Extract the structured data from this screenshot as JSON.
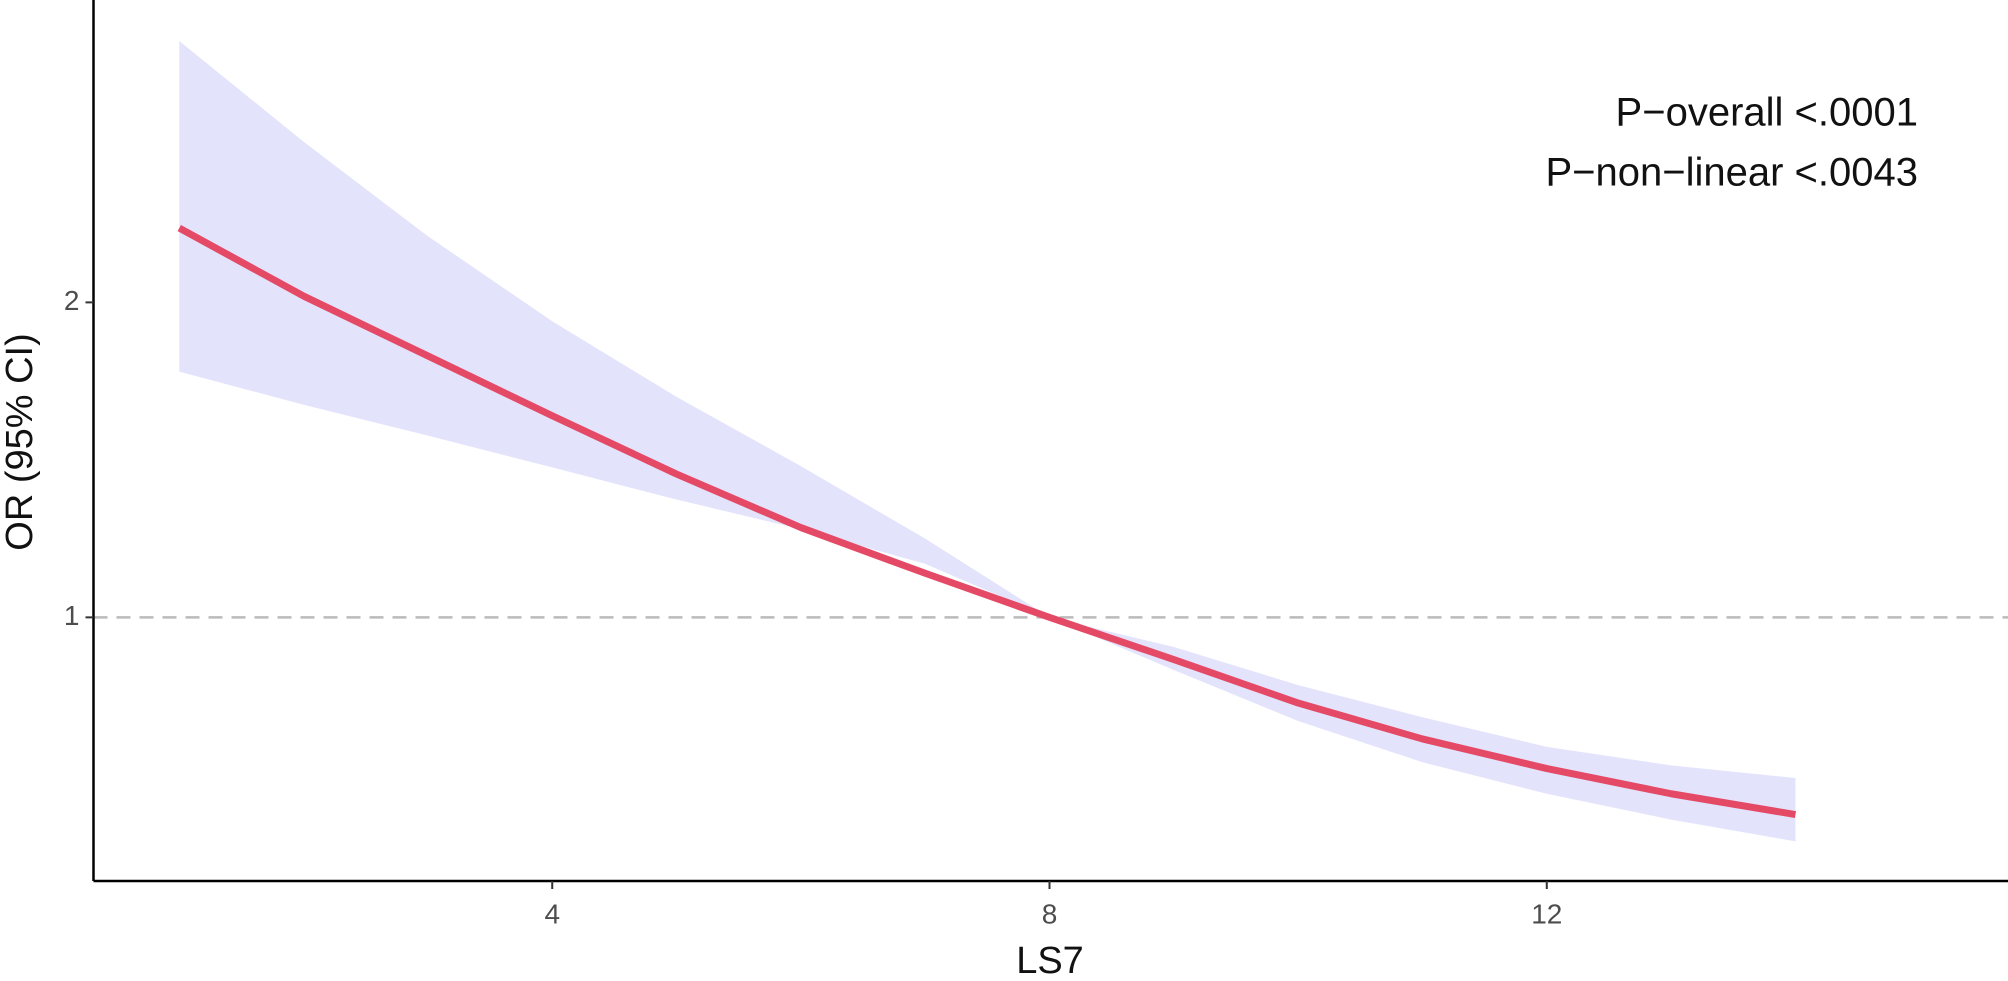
{
  "chart_data": {
    "type": "line",
    "x_label": "LS7",
    "y_label": "OR (95% CI)",
    "annotations": [
      "P−overall <.0001",
      "P−non−linear <.0043"
    ],
    "x": [
      1,
      2,
      3,
      4,
      5,
      6,
      7,
      8,
      9,
      10,
      11,
      12,
      13,
      14
    ],
    "series": [
      {
        "name": "OR",
        "color": "#e44a65",
        "values": [
          2.236,
          2.02,
          1.83,
          1.64,
          1.455,
          1.285,
          1.14,
          1.0,
          0.866,
          0.728,
          0.614,
          0.52,
          0.44,
          0.374
        ]
      }
    ],
    "ci": {
      "color": "#e3e3fc",
      "upper": [
        2.83,
        2.51,
        2.21,
        1.94,
        1.7,
        1.48,
        1.25,
        1.0,
        0.906,
        0.785,
        0.683,
        0.589,
        0.53,
        0.49
      ],
      "lower": [
        1.78,
        1.675,
        1.577,
        1.476,
        1.374,
        1.28,
        1.17,
        1.0,
        0.833,
        0.671,
        0.54,
        0.44,
        0.358,
        0.289
      ]
    },
    "reference_line": {
      "value": 1,
      "color": "#bbbbbb"
    },
    "xlim": [
      0.31,
      15.71
    ],
    "ylim": [
      0.163,
      2.96
    ],
    "xticks": [
      4,
      8,
      12
    ],
    "yticks": [
      1,
      2
    ]
  }
}
